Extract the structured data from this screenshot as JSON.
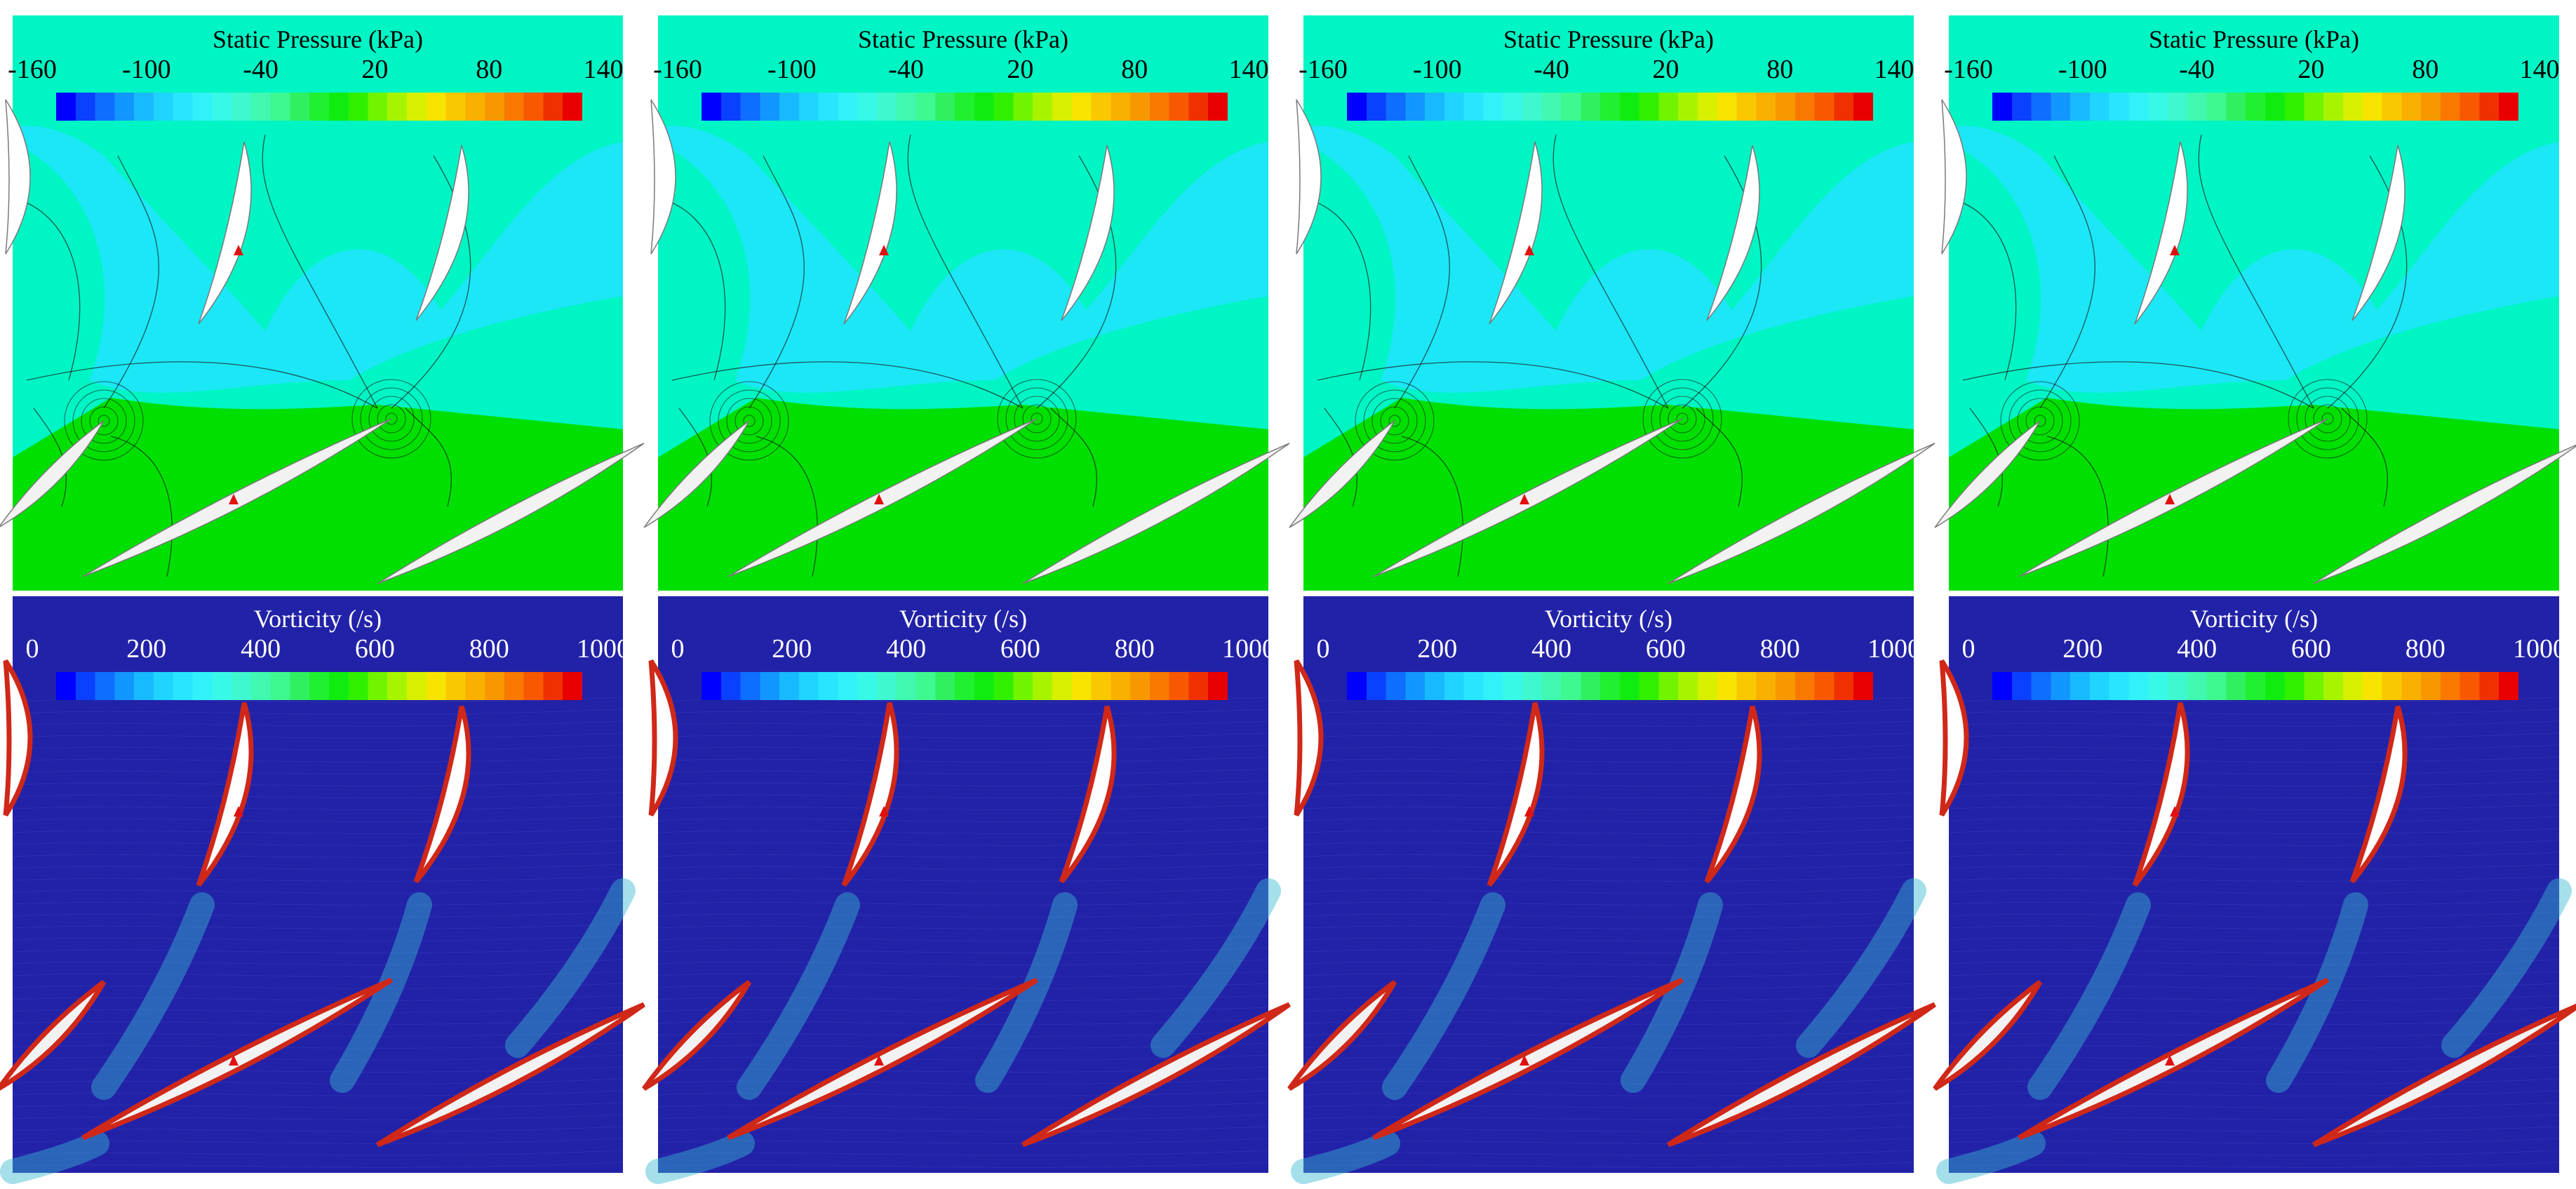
{
  "panels": [
    {
      "index": 1
    },
    {
      "index": 2
    },
    {
      "index": 3
    },
    {
      "index": 4
    }
  ],
  "pressure": {
    "title": "Static Pressure (kPa)",
    "ticks": [
      "-160",
      "-100",
      "-40",
      "20",
      "80",
      "140"
    ],
    "colors": [
      "#0000ff",
      "#0a40ff",
      "#0e6eff",
      "#1296ff",
      "#18baff",
      "#1fd4ff",
      "#28e6ff",
      "#30f2f8",
      "#38f8e8",
      "#3ef8d0",
      "#40f8b0",
      "#3ef890",
      "#30f060",
      "#20f030",
      "#10ec10",
      "#30f000",
      "#70f400",
      "#a8f400",
      "#d8f000",
      "#f8e400",
      "#fac800",
      "#fab000",
      "#f89800",
      "#f87800",
      "#f85800",
      "#f03000",
      "#e80000"
    ],
    "field": {
      "upper_color": "#00f5c4",
      "lower_color": "#00e000",
      "low_color": "#20e4ff"
    }
  },
  "vorticity": {
    "title": "Vorticity (/s)",
    "ticks": [
      "0",
      "200",
      "400",
      "600",
      "800",
      "1000"
    ],
    "colors": [
      "#0000ff",
      "#0a40ff",
      "#0e6eff",
      "#1296ff",
      "#18baff",
      "#1fd4ff",
      "#28e6ff",
      "#30f2f8",
      "#38f8e8",
      "#3ef8d0",
      "#40f8b0",
      "#3ef890",
      "#30f060",
      "#20f030",
      "#10ec10",
      "#30f000",
      "#70f400",
      "#a8f400",
      "#d8f000",
      "#f8e400",
      "#fac800",
      "#fab000",
      "#f89800",
      "#f87800",
      "#f85800",
      "#f03000",
      "#e80000"
    ],
    "field": {
      "background": "#2222a8",
      "blade_edge": "#d02818",
      "wake": "#38b8d0"
    }
  },
  "marker_color": "#e01010"
}
